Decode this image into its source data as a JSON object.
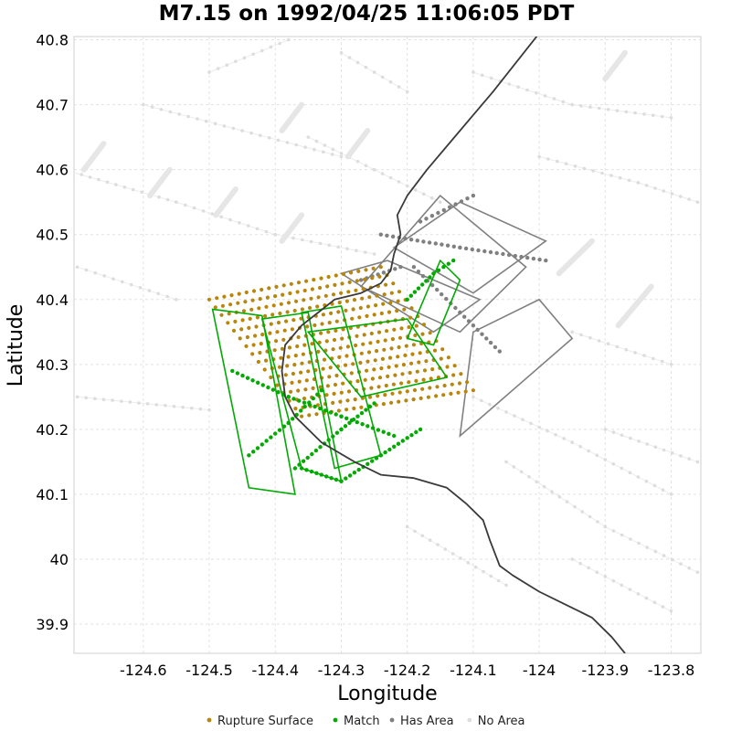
{
  "chart_data": {
    "type": "scatter",
    "title": "M7.15 on 1992/04/25 11:06:05 PDT",
    "xlabel": "Longitude",
    "ylabel": "Latitude",
    "xlim": [
      -124.705,
      -123.755
    ],
    "ylim": [
      39.855,
      40.805
    ],
    "x_ticks": [
      -124.6,
      -124.5,
      -124.4,
      -124.3,
      -124.2,
      -124.1,
      -124,
      -123.9,
      -123.8
    ],
    "x_tick_labels": [
      "-124.6",
      "-124.5",
      "-124.4",
      "-124.3",
      "-124.2",
      "-124.1",
      "-124",
      "-123.9",
      "-123.8"
    ],
    "y_ticks": [
      39.9,
      40,
      40.1,
      40.2,
      40.3,
      40.4,
      40.5,
      40.6,
      40.7,
      40.8
    ],
    "y_tick_labels": [
      "39.9",
      "40",
      "40.1",
      "40.2",
      "40.3",
      "40.4",
      "40.5",
      "40.6",
      "40.7",
      "40.8"
    ],
    "grid": true,
    "legend_position": "bottom",
    "legend": [
      {
        "label": "Rupture Surface",
        "color": "#b8860b"
      },
      {
        "label": "Match",
        "color": "#00aa00"
      },
      {
        "label": "Has Area",
        "color": "#808080"
      },
      {
        "label": "No Area",
        "color": "#dddddd"
      }
    ],
    "coastline": [
      [
        -124.0,
        40.81
      ],
      [
        -124.07,
        40.72
      ],
      [
        -124.12,
        40.66
      ],
      [
        -124.17,
        40.6
      ],
      [
        -124.2,
        40.56
      ],
      [
        -124.215,
        40.53
      ],
      [
        -124.21,
        40.5
      ],
      [
        -124.22,
        40.47
      ],
      [
        -124.225,
        40.445
      ],
      [
        -124.24,
        40.425
      ],
      [
        -124.27,
        40.41
      ],
      [
        -124.31,
        40.4
      ],
      [
        -124.335,
        40.38
      ],
      [
        -124.36,
        40.36
      ],
      [
        -124.385,
        40.33
      ],
      [
        -124.39,
        40.29
      ],
      [
        -124.385,
        40.25
      ],
      [
        -124.37,
        40.22
      ],
      [
        -124.33,
        40.18
      ],
      [
        -124.28,
        40.15
      ],
      [
        -124.24,
        40.13
      ],
      [
        -124.19,
        40.125
      ],
      [
        -124.14,
        40.11
      ],
      [
        -124.11,
        40.085
      ],
      [
        -124.085,
        40.06
      ],
      [
        -124.075,
        40.03
      ],
      [
        -124.06,
        39.99
      ],
      [
        -124.04,
        39.975
      ],
      [
        -124.0,
        39.95
      ],
      [
        -123.96,
        39.93
      ],
      [
        -123.92,
        39.91
      ],
      [
        -123.89,
        39.88
      ],
      [
        -123.87,
        39.855
      ]
    ],
    "rupture_surface": {
      "color": "#b8860b",
      "corners": [
        [
          -124.5,
          40.4
        ],
        [
          -124.24,
          40.45
        ],
        [
          -124.1,
          40.26
        ],
        [
          -124.36,
          40.22
        ]
      ],
      "rows": 16,
      "cols": 24
    },
    "match_ruptures": {
      "color": "#00aa00",
      "polygons": [
        [
          [
            -124.495,
            40.385
          ],
          [
            -124.44,
            40.11
          ],
          [
            -124.37,
            40.1
          ],
          [
            -124.42,
            40.375
          ]
        ],
        [
          [
            -124.42,
            40.37
          ],
          [
            -124.36,
            40.14
          ],
          [
            -124.3,
            40.12
          ],
          [
            -124.35,
            40.38
          ]
        ],
        [
          [
            -124.36,
            40.38
          ],
          [
            -124.31,
            40.14
          ],
          [
            -124.24,
            40.16
          ],
          [
            -124.3,
            40.39
          ]
        ],
        [
          [
            -124.35,
            40.35
          ],
          [
            -124.2,
            40.37
          ],
          [
            -124.14,
            40.28
          ],
          [
            -124.27,
            40.25
          ]
        ],
        [
          [
            -124.2,
            40.34
          ],
          [
            -124.15,
            40.46
          ],
          [
            -124.12,
            40.43
          ],
          [
            -124.16,
            40.33
          ]
        ]
      ],
      "traces": [
        [
          [
            -124.465,
            40.29
          ],
          [
            -124.38,
            40.25
          ],
          [
            -124.3,
            40.22
          ],
          [
            -124.22,
            40.19
          ]
        ],
        [
          [
            -124.44,
            40.16
          ],
          [
            -124.38,
            40.21
          ],
          [
            -124.33,
            40.26
          ]
        ],
        [
          [
            -124.37,
            40.14
          ],
          [
            -124.3,
            40.2
          ],
          [
            -124.25,
            40.24
          ]
        ],
        [
          [
            -124.36,
            40.14
          ],
          [
            -124.3,
            40.12
          ],
          [
            -124.24,
            40.16
          ],
          [
            -124.18,
            40.2
          ]
        ],
        [
          [
            -124.2,
            40.4
          ],
          [
            -124.16,
            40.44
          ],
          [
            -124.13,
            40.46
          ]
        ]
      ]
    },
    "has_area_ruptures": {
      "color": "#808080",
      "polygons": [
        [
          [
            -124.27,
            40.42
          ],
          [
            -124.15,
            40.56
          ],
          [
            -124.02,
            40.45
          ],
          [
            -124.12,
            40.35
          ]
        ],
        [
          [
            -124.22,
            40.48
          ],
          [
            -124.12,
            40.55
          ],
          [
            -123.99,
            40.49
          ],
          [
            -124.1,
            40.41
          ]
        ],
        [
          [
            -124.3,
            40.44
          ],
          [
            -124.23,
            40.46
          ],
          [
            -124.09,
            40.4
          ],
          [
            -124.16,
            40.35
          ]
        ],
        [
          [
            -124.1,
            40.35
          ],
          [
            -124.0,
            40.4
          ],
          [
            -123.95,
            40.34
          ],
          [
            -124.12,
            40.19
          ]
        ]
      ],
      "traces": [
        [
          [
            -124.24,
            40.5
          ],
          [
            -124.12,
            40.48
          ],
          [
            -123.99,
            40.46
          ]
        ],
        [
          [
            -124.19,
            40.45
          ],
          [
            -124.12,
            40.38
          ],
          [
            -124.06,
            40.32
          ]
        ],
        [
          [
            -124.18,
            40.52
          ],
          [
            -124.1,
            40.56
          ]
        ],
        [
          [
            -124.27,
            40.43
          ],
          [
            -124.21,
            40.45
          ]
        ]
      ]
    },
    "no_area_ruptures": {
      "color": "#dddddd",
      "lines": [
        [
          [
            -124.72,
            40.6
          ],
          [
            -124.55,
            40.55
          ],
          [
            -124.4,
            40.5
          ],
          [
            -124.25,
            40.47
          ]
        ],
        [
          [
            -124.6,
            40.7
          ],
          [
            -124.45,
            40.66
          ],
          [
            -124.3,
            40.62
          ]
        ],
        [
          [
            -124.7,
            40.45
          ],
          [
            -124.55,
            40.4
          ]
        ],
        [
          [
            -124.7,
            40.25
          ],
          [
            -124.5,
            40.23
          ]
        ],
        [
          [
            -124.5,
            40.75
          ],
          [
            -124.38,
            40.8
          ]
        ],
        [
          [
            -124.3,
            40.78
          ],
          [
            -124.2,
            40.72
          ]
        ],
        [
          [
            -124.1,
            40.75
          ],
          [
            -123.95,
            40.7
          ],
          [
            -123.8,
            40.68
          ]
        ],
        [
          [
            -124.0,
            40.62
          ],
          [
            -123.85,
            40.58
          ],
          [
            -123.76,
            40.55
          ]
        ],
        [
          [
            -123.95,
            40.35
          ],
          [
            -123.8,
            40.3
          ]
        ],
        [
          [
            -123.9,
            40.2
          ],
          [
            -123.76,
            40.15
          ]
        ],
        [
          [
            -124.1,
            40.25
          ],
          [
            -123.95,
            40.18
          ],
          [
            -123.8,
            40.1
          ]
        ],
        [
          [
            -124.05,
            40.15
          ],
          [
            -123.9,
            40.05
          ],
          [
            -123.76,
            39.98
          ]
        ],
        [
          [
            -124.2,
            40.05
          ],
          [
            -124.05,
            39.96
          ]
        ],
        [
          [
            -123.95,
            40.0
          ],
          [
            -123.8,
            39.92
          ]
        ],
        [
          [
            -124.35,
            40.65
          ],
          [
            -124.25,
            40.6
          ],
          [
            -124.15,
            40.55
          ]
        ]
      ],
      "bands": [
        [
          [
            -124.69,
            40.6
          ],
          [
            -124.66,
            40.64
          ]
        ],
        [
          [
            -124.59,
            40.56
          ],
          [
            -124.56,
            40.6
          ]
        ],
        [
          [
            -124.49,
            40.53
          ],
          [
            -124.46,
            40.57
          ]
        ],
        [
          [
            -124.39,
            40.49
          ],
          [
            -124.36,
            40.53
          ]
        ],
        [
          [
            -124.39,
            40.66
          ],
          [
            -124.36,
            40.7
          ]
        ],
        [
          [
            -124.29,
            40.62
          ],
          [
            -124.26,
            40.66
          ]
        ],
        [
          [
            -123.97,
            40.44
          ],
          [
            -123.92,
            40.49
          ]
        ],
        [
          [
            -123.88,
            40.36
          ],
          [
            -123.83,
            40.42
          ]
        ],
        [
          [
            -123.9,
            40.74
          ],
          [
            -123.87,
            40.78
          ]
        ]
      ]
    }
  }
}
